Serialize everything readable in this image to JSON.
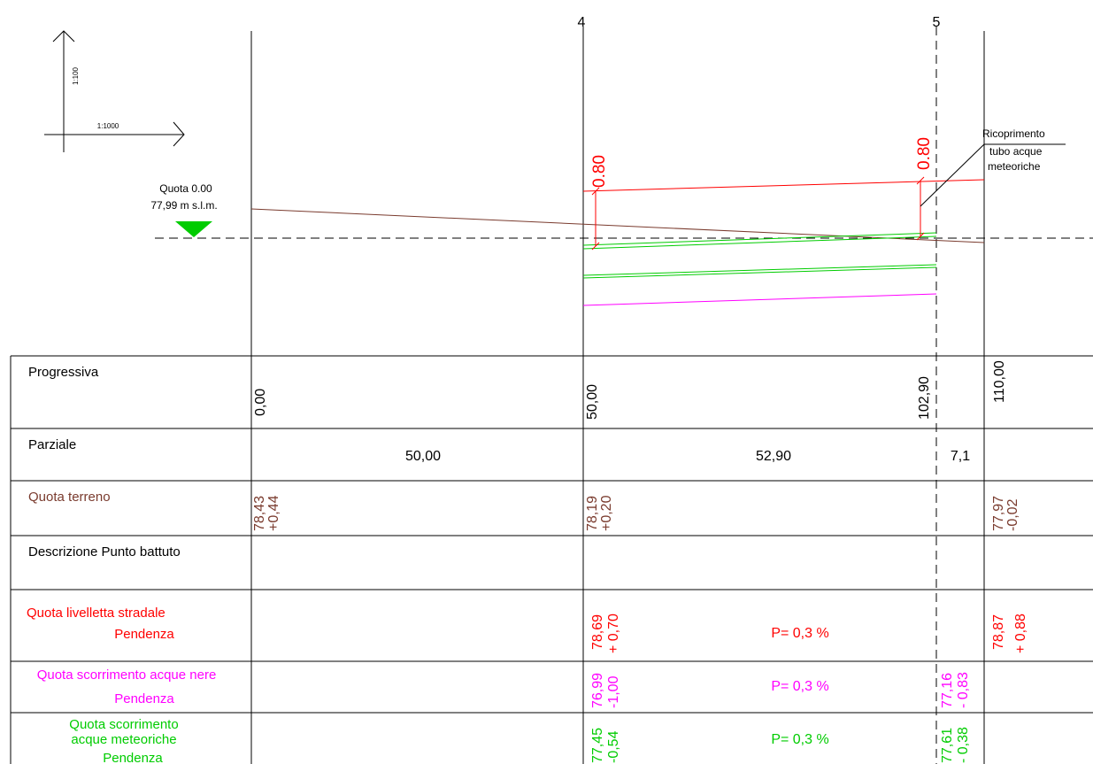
{
  "scale": {
    "vertical_label": "1:100",
    "horizontal_label": "1:1000"
  },
  "reference": {
    "title": "Quota 0.00",
    "elevation": "77,99 m s.l.m."
  },
  "sections": [
    {
      "name": "4"
    },
    {
      "name": "5"
    }
  ],
  "cover": {
    "values": [
      "0.80",
      "0.80"
    ],
    "note_line1": "Ricoprimento",
    "note_line2": "tubo acque",
    "note_line3": "meteoriche"
  },
  "table": {
    "rows": [
      {
        "label": "Progressiva",
        "color": "#000000"
      },
      {
        "label": "Parziale",
        "color": "#000000"
      },
      {
        "label": "Quota terreno",
        "color": "#7a3b2e"
      },
      {
        "label": "Descrizione Punto battuto",
        "color": "#000000"
      },
      {
        "label": "Quota livelletta stradale",
        "label2": "Pendenza",
        "color": "#ff0000"
      },
      {
        "label": "Quota scorrimento acque nere",
        "label2": "Pendenza",
        "color": "#ff00ff"
      },
      {
        "label": "Quota scorrimento",
        "label2": "acque meteoriche",
        "label3": "Pendenza",
        "color": "#00cc00"
      }
    ],
    "progressive": [
      "0,00",
      "50,00",
      "102,90",
      "110,00"
    ],
    "partial": [
      "50,00",
      "52,90",
      "7,1"
    ],
    "terrain": [
      {
        "value": "78,43",
        "delta": "+0,44"
      },
      {
        "value": "78,19",
        "delta": "+0,20"
      },
      {
        "value": "77,97",
        "delta": "-0,02"
      }
    ],
    "road": [
      {
        "value": "78,69",
        "delta": "+ 0,70"
      },
      {
        "value": "78,87",
        "delta": "+ 0,88"
      }
    ],
    "road_slope": "P= 0,3 %",
    "black_water": [
      {
        "value": "76,99",
        "delta": "-1,00"
      },
      {
        "value": "77,16",
        "delta": "- 0,83"
      }
    ],
    "black_slope": "P= 0,3 %",
    "storm_water": [
      {
        "value": "77,45",
        "delta": "-0,54"
      },
      {
        "value": "77,61",
        "delta": "- 0,38"
      }
    ],
    "storm_slope": "P= 0,3 %"
  },
  "colors": {
    "terrain": "#7a3b2e",
    "road": "#ff0000",
    "black_water": "#ff00ff",
    "storm_water": "#00cc00",
    "marker": "#00cc00"
  }
}
